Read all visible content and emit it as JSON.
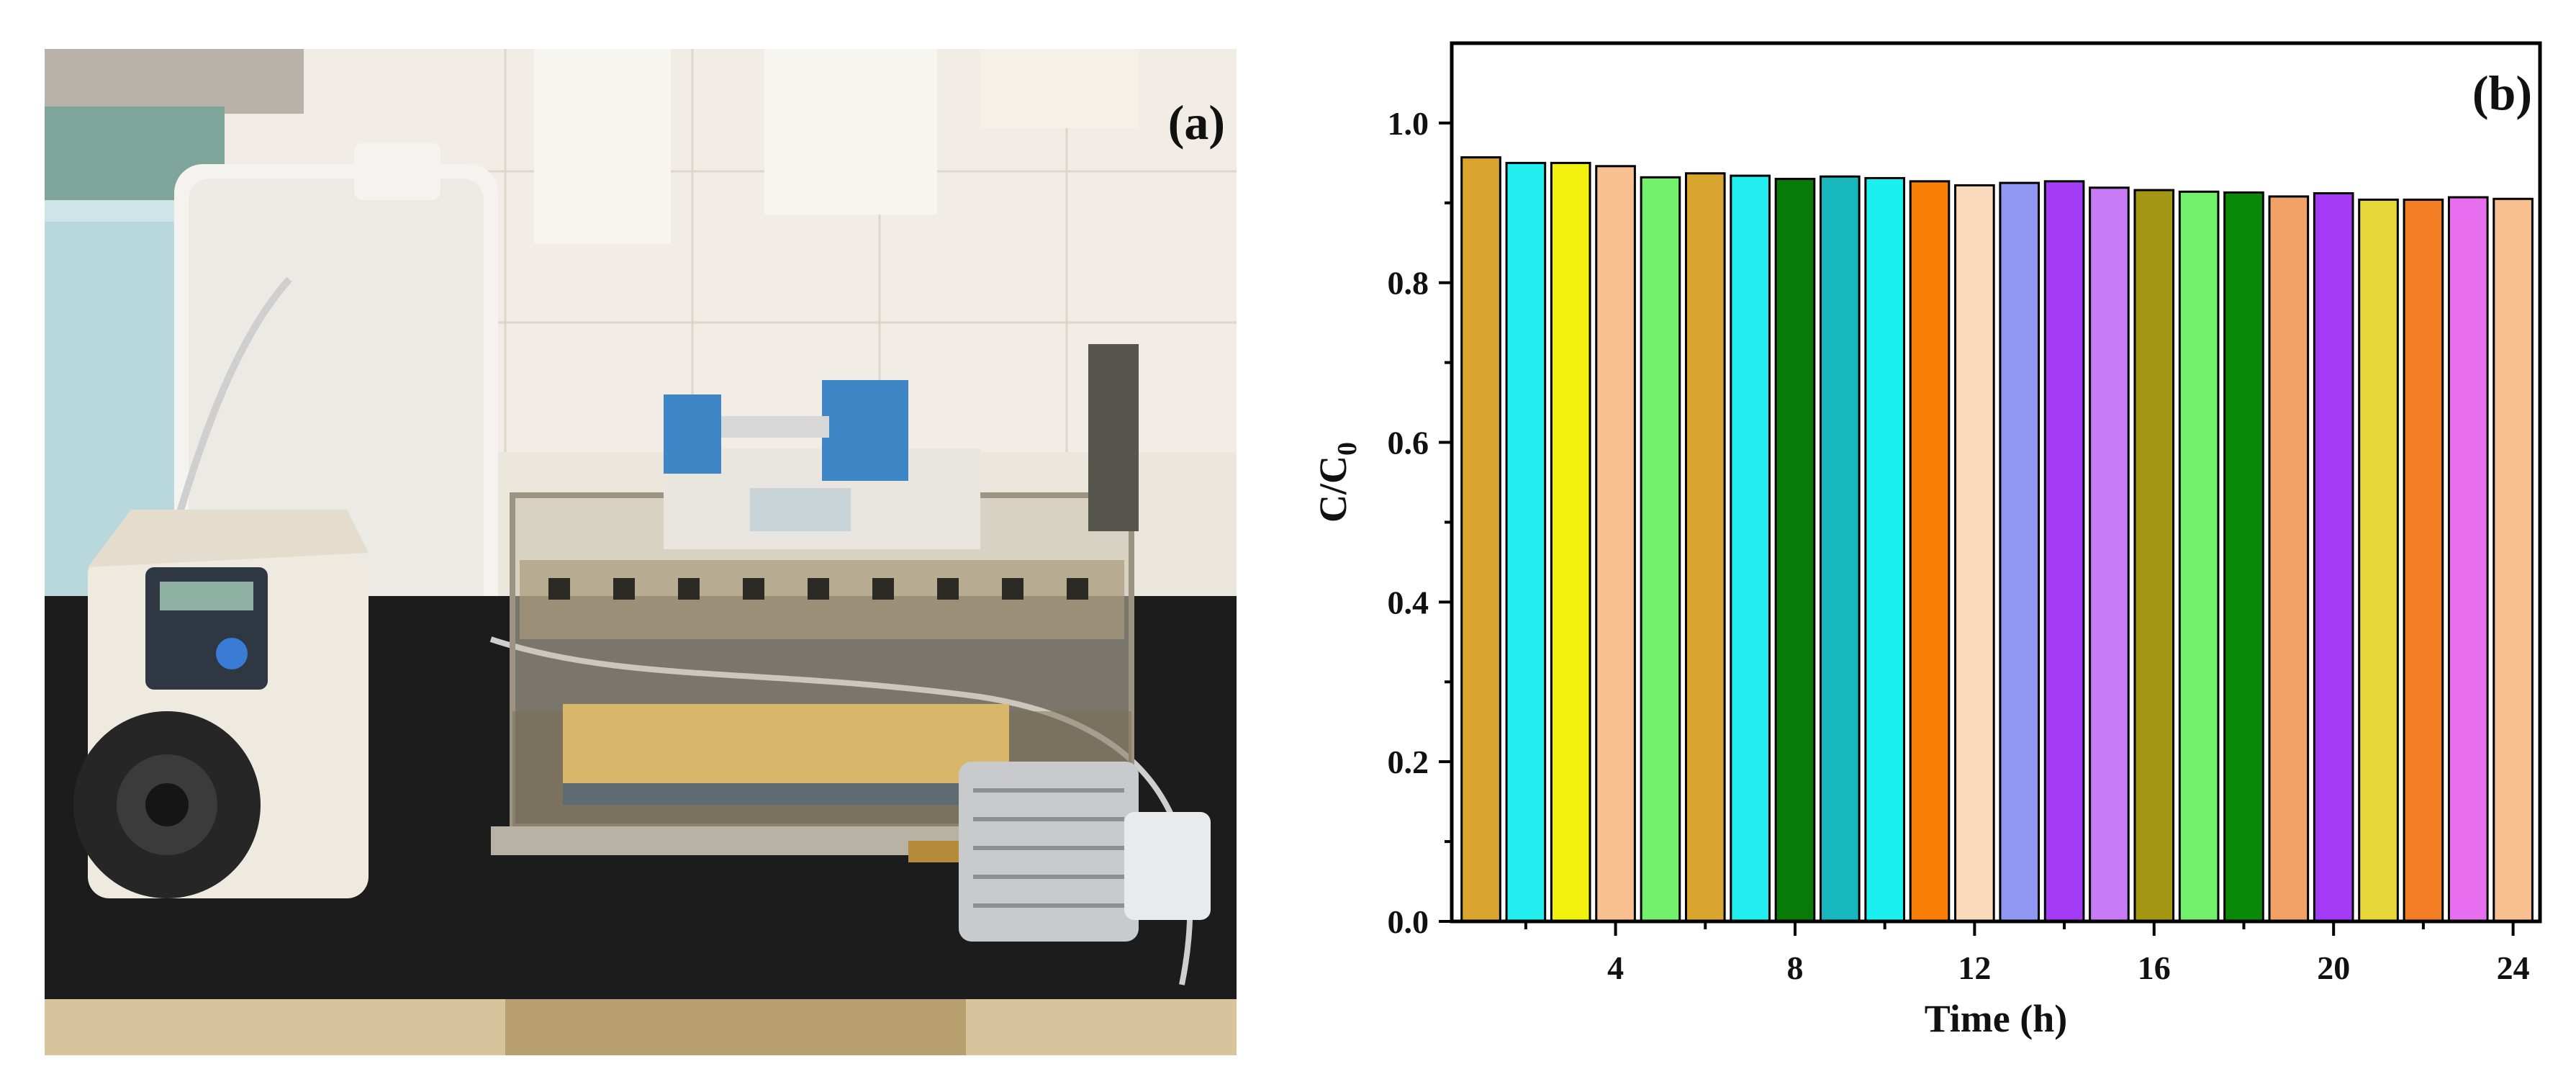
{
  "panels": {
    "photo_label": "(a)",
    "chart_label": "(b)"
  },
  "chart_data": {
    "type": "bar",
    "title": "",
    "xlabel": "Time (h)",
    "ylabel_main": "C/C",
    "ylabel_sub": "0",
    "x": [
      1,
      2,
      3,
      4,
      5,
      6,
      7,
      8,
      9,
      10,
      11,
      12,
      13,
      14,
      15,
      16,
      17,
      18,
      19,
      20,
      21,
      22,
      23,
      24
    ],
    "values": [
      0.957,
      0.95,
      0.95,
      0.946,
      0.932,
      0.937,
      0.934,
      0.93,
      0.933,
      0.931,
      0.927,
      0.922,
      0.925,
      0.927,
      0.919,
      0.916,
      0.914,
      0.913,
      0.908,
      0.912,
      0.904,
      0.904,
      0.907,
      0.905
    ],
    "colors": [
      "#DAA52E",
      "#22EEF0",
      "#F2F20E",
      "#F8C091",
      "#72F06C",
      "#DAA52E",
      "#22EEF0",
      "#077A07",
      "#18B7BE",
      "#1AF0F0",
      "#F97E08",
      "#FAD9BD",
      "#8F97F2",
      "#A43CF5",
      "#C77AF5",
      "#A39613",
      "#72F06C",
      "#088908",
      "#F1A066",
      "#A43CF5",
      "#E6D83A",
      "#F27D24",
      "#E76EEE",
      "#F8C091"
    ],
    "xticks": [
      4,
      8,
      12,
      16,
      20,
      24
    ],
    "yticks": [
      0.0,
      0.2,
      0.4,
      0.6,
      0.8,
      1.0
    ],
    "ylim": [
      0,
      1.1
    ],
    "xlim": [
      0.35,
      24.6
    ],
    "grid": false,
    "legend": "none"
  }
}
